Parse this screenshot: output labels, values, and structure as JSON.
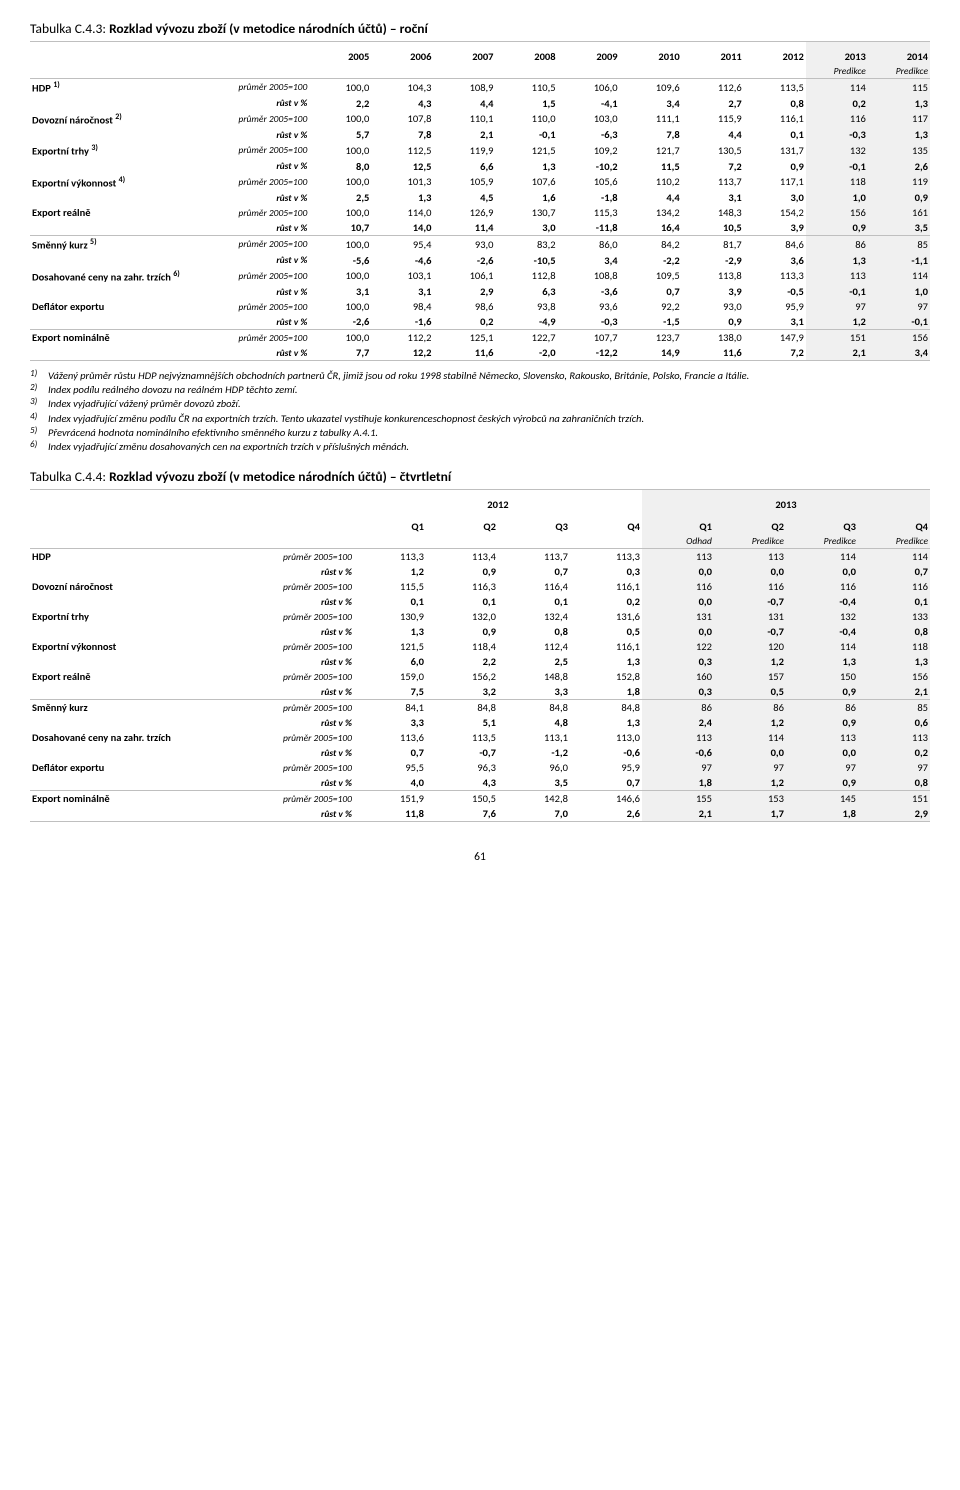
{
  "table1": {
    "title_prefix": "Tabulka C.4.3: ",
    "title_bold": "Rozklad vývozu zboží (v metodice národních účtů) – roční",
    "years": [
      "2005",
      "2006",
      "2007",
      "2008",
      "2009",
      "2010",
      "2011",
      "2012",
      "2013",
      "2014"
    ],
    "subhdr": [
      "",
      "",
      "",
      "",
      "",
      "",
      "",
      "",
      "Predikce",
      "Predikce"
    ],
    "pred_start": 8,
    "groups": [
      {
        "sep": "thick",
        "rows": [
          {
            "label": "HDP ",
            "sup": "1)",
            "unit": "průměr 2005=100",
            "vals": [
              "100,0",
              "104,3",
              "108,9",
              "110,5",
              "106,0",
              "109,6",
              "112,6",
              "113,5",
              "114",
              "115"
            ]
          },
          {
            "label": "",
            "unit": "růst v %",
            "vals": [
              "2,2",
              "4,3",
              "4,4",
              "1,5",
              "-4,1",
              "3,4",
              "2,7",
              "0,8",
              "0,2",
              "1,3"
            ]
          },
          {
            "label": "Dovozní náročnost ",
            "sup": "2)",
            "unit": "průměr 2005=100",
            "vals": [
              "100,0",
              "107,8",
              "110,1",
              "110,0",
              "103,0",
              "111,1",
              "115,9",
              "116,1",
              "116",
              "117"
            ]
          },
          {
            "label": "",
            "unit": "růst v %",
            "vals": [
              "5,7",
              "7,8",
              "2,1",
              "-0,1",
              "-6,3",
              "7,8",
              "4,4",
              "0,1",
              "-0,3",
              "1,3"
            ]
          },
          {
            "label": "Exportní trhy ",
            "sup": "3)",
            "unit": "průměr 2005=100",
            "vals": [
              "100,0",
              "112,5",
              "119,9",
              "121,5",
              "109,2",
              "121,7",
              "130,5",
              "131,7",
              "132",
              "135"
            ]
          },
          {
            "label": "",
            "unit": "růst v %",
            "vals": [
              "8,0",
              "12,5",
              "6,6",
              "1,3",
              "-10,2",
              "11,5",
              "7,2",
              "0,9",
              "-0,1",
              "2,6"
            ]
          },
          {
            "label": "Exportní výkonnost ",
            "sup": "4)",
            "unit": "průměr 2005=100",
            "vals": [
              "100,0",
              "101,3",
              "105,9",
              "107,6",
              "105,6",
              "110,2",
              "113,7",
              "117,1",
              "118",
              "119"
            ]
          },
          {
            "label": "",
            "unit": "růst v %",
            "vals": [
              "2,5",
              "1,3",
              "4,5",
              "1,6",
              "-1,8",
              "4,4",
              "3,1",
              "3,0",
              "1,0",
              "0,9"
            ]
          },
          {
            "label": "Export reálně",
            "unit": "průměr 2005=100",
            "vals": [
              "100,0",
              "114,0",
              "126,9",
              "130,7",
              "115,3",
              "134,2",
              "148,3",
              "154,2",
              "156",
              "161"
            ]
          },
          {
            "label": "",
            "unit": "růst v %",
            "vals": [
              "10,7",
              "14,0",
              "11,4",
              "3,0",
              "-11,8",
              "16,4",
              "10,5",
              "3,9",
              "0,9",
              "3,5"
            ]
          }
        ]
      },
      {
        "sep": "thin",
        "rows": [
          {
            "label": "Směnný kurz ",
            "sup": "5)",
            "unit": "průměr 2005=100",
            "vals": [
              "100,0",
              "95,4",
              "93,0",
              "83,2",
              "86,0",
              "84,2",
              "81,7",
              "84,6",
              "86",
              "85"
            ]
          },
          {
            "label": "",
            "unit": "růst v %",
            "vals": [
              "-5,6",
              "-4,6",
              "-2,6",
              "-10,5",
              "3,4",
              "-2,2",
              "-2,9",
              "3,6",
              "1,3",
              "-1,1"
            ]
          },
          {
            "label": "Dosahované ceny na zahr. trzích ",
            "sup": "6)",
            "unit": "průměr 2005=100",
            "vals": [
              "100,0",
              "103,1",
              "106,1",
              "112,8",
              "108,8",
              "109,5",
              "113,8",
              "113,3",
              "113",
              "114"
            ]
          },
          {
            "label": "",
            "unit": "růst v %",
            "vals": [
              "3,1",
              "3,1",
              "2,9",
              "6,3",
              "-3,6",
              "0,7",
              "3,9",
              "-0,5",
              "-0,1",
              "1,0"
            ]
          },
          {
            "label": "Deflátor exportu",
            "unit": "průměr 2005=100",
            "vals": [
              "100,0",
              "98,4",
              "98,6",
              "93,8",
              "93,6",
              "92,2",
              "93,0",
              "95,9",
              "97",
              "97"
            ]
          },
          {
            "label": "",
            "unit": "růst v %",
            "vals": [
              "-2,6",
              "-1,6",
              "0,2",
              "-4,9",
              "-0,3",
              "-1,5",
              "0,9",
              "3,1",
              "1,2",
              "-0,1"
            ]
          }
        ]
      },
      {
        "sep": "thin",
        "bottom": "thick",
        "rows": [
          {
            "label": "Export nominálně",
            "unit": "průměr 2005=100",
            "vals": [
              "100,0",
              "112,2",
              "125,1",
              "122,7",
              "107,7",
              "123,7",
              "138,0",
              "147,9",
              "151",
              "156"
            ]
          },
          {
            "label": "",
            "unit": "růst v %",
            "vals": [
              "7,7",
              "12,2",
              "11,6",
              "-2,0",
              "-12,2",
              "14,9",
              "11,6",
              "7,2",
              "2,1",
              "3,4"
            ]
          }
        ]
      }
    ]
  },
  "footnotes": [
    {
      "n": "1)",
      "t": "Vážený průměr růstu HDP nejvýznamnějších obchodních partnerů ČR, jimiž jsou od roku 1998 stabilně Německo, Slovensko, Rakousko, Británie, Polsko, Francie a Itálie."
    },
    {
      "n": "2)",
      "t": "Index podílu reálného dovozu na reálném HDP těchto zemí."
    },
    {
      "n": "3)",
      "t": "Index vyjadřující vážený průměr dovozů zboží."
    },
    {
      "n": "4)",
      "t": "Index vyjadřující změnu podílu ČR na exportních trzích. Tento ukazatel vystihuje konkurenceschopnost českých výrobců na zahraničních trzích."
    },
    {
      "n": "5)",
      "t": "Převrácená hodnota nominálního efektivního směnného kurzu z tabulky A.4.1."
    },
    {
      "n": "6)",
      "t": "Index vyjadřující změnu dosahovaných cen na exportních trzích v příslušných měnách."
    }
  ],
  "table2": {
    "title_prefix": "Tabulka C.4.4: ",
    "title_bold": "Rozklad vývozu zboží (v metodice národních účtů) – čtvrtletní",
    "year_hdr": [
      "2012",
      "2013"
    ],
    "quarters": [
      "Q1",
      "Q2",
      "Q3",
      "Q4",
      "Q1",
      "Q2",
      "Q3",
      "Q4"
    ],
    "subhdr": [
      "",
      "",
      "",
      "",
      "Odhad",
      "Predikce",
      "Predikce",
      "Predikce"
    ],
    "pred_start": 4,
    "groups": [
      {
        "sep": "thick",
        "rows": [
          {
            "label": "HDP",
            "unit": "průměr 2005=100",
            "vals": [
              "113,3",
              "113,4",
              "113,7",
              "113,3",
              "113",
              "113",
              "114",
              "114"
            ]
          },
          {
            "label": "",
            "unit": "růst v %",
            "vals": [
              "1,2",
              "0,9",
              "0,7",
              "0,3",
              "0,0",
              "0,0",
              "0,0",
              "0,7"
            ]
          },
          {
            "label": "Dovozní náročnost",
            "unit": "průměr 2005=100",
            "vals": [
              "115,5",
              "116,3",
              "116,4",
              "116,1",
              "116",
              "116",
              "116",
              "116"
            ]
          },
          {
            "label": "",
            "unit": "růst v %",
            "vals": [
              "0,1",
              "0,1",
              "0,1",
              "0,2",
              "0,0",
              "-0,7",
              "-0,4",
              "0,1"
            ]
          },
          {
            "label": "Exportní trhy",
            "unit": "průměr 2005=100",
            "vals": [
              "130,9",
              "132,0",
              "132,4",
              "131,6",
              "131",
              "131",
              "132",
              "133"
            ]
          },
          {
            "label": "",
            "unit": "růst v %",
            "vals": [
              "1,3",
              "0,9",
              "0,8",
              "0,5",
              "0,0",
              "-0,7",
              "-0,4",
              "0,8"
            ]
          },
          {
            "label": "Exportní výkonnost",
            "unit": "průměr 2005=100",
            "vals": [
              "121,5",
              "118,4",
              "112,4",
              "116,1",
              "122",
              "120",
              "114",
              "118"
            ]
          },
          {
            "label": "",
            "unit": "růst v %",
            "vals": [
              "6,0",
              "2,2",
              "2,5",
              "1,3",
              "0,3",
              "1,2",
              "1,3",
              "1,3"
            ]
          },
          {
            "label": "Export reálně",
            "unit": "průměr 2005=100",
            "vals": [
              "159,0",
              "156,2",
              "148,8",
              "152,8",
              "160",
              "157",
              "150",
              "156"
            ]
          },
          {
            "label": "",
            "unit": "růst v %",
            "vals": [
              "7,5",
              "3,2",
              "3,3",
              "1,8",
              "0,3",
              "0,5",
              "0,9",
              "2,1"
            ]
          }
        ]
      },
      {
        "sep": "thin",
        "rows": [
          {
            "label": "Směnný kurz",
            "unit": "průměr 2005=100",
            "vals": [
              "84,1",
              "84,8",
              "84,8",
              "84,8",
              "86",
              "86",
              "86",
              "85"
            ]
          },
          {
            "label": "",
            "unit": "růst v %",
            "vals": [
              "3,3",
              "5,1",
              "4,8",
              "1,3",
              "2,4",
              "1,2",
              "0,9",
              "0,6"
            ]
          },
          {
            "label": "Dosahované ceny na zahr. trzích",
            "unit": "průměr 2005=100",
            "vals": [
              "113,6",
              "113,5",
              "113,1",
              "113,0",
              "113",
              "114",
              "113",
              "113"
            ]
          },
          {
            "label": "",
            "unit": "růst v %",
            "vals": [
              "0,7",
              "-0,7",
              "-1,2",
              "-0,6",
              "-0,6",
              "0,0",
              "0,0",
              "0,2"
            ]
          },
          {
            "label": "Deflátor exportu",
            "unit": "průměr 2005=100",
            "vals": [
              "95,5",
              "96,3",
              "96,0",
              "95,9",
              "97",
              "97",
              "97",
              "97"
            ]
          },
          {
            "label": "",
            "unit": "růst v %",
            "vals": [
              "4,0",
              "4,3",
              "3,5",
              "0,7",
              "1,8",
              "1,2",
              "0,9",
              "0,8"
            ]
          }
        ]
      },
      {
        "sep": "thin",
        "bottom": "thick",
        "rows": [
          {
            "label": "Export nominálně",
            "unit": "průměr 2005=100",
            "vals": [
              "151,9",
              "150,5",
              "142,8",
              "146,6",
              "155",
              "153",
              "145",
              "151"
            ]
          },
          {
            "label": "",
            "unit": "růst v %",
            "vals": [
              "11,8",
              "7,6",
              "7,0",
              "2,6",
              "2,1",
              "1,7",
              "1,8",
              "2,9"
            ]
          }
        ]
      }
    ]
  },
  "page_num": "61"
}
